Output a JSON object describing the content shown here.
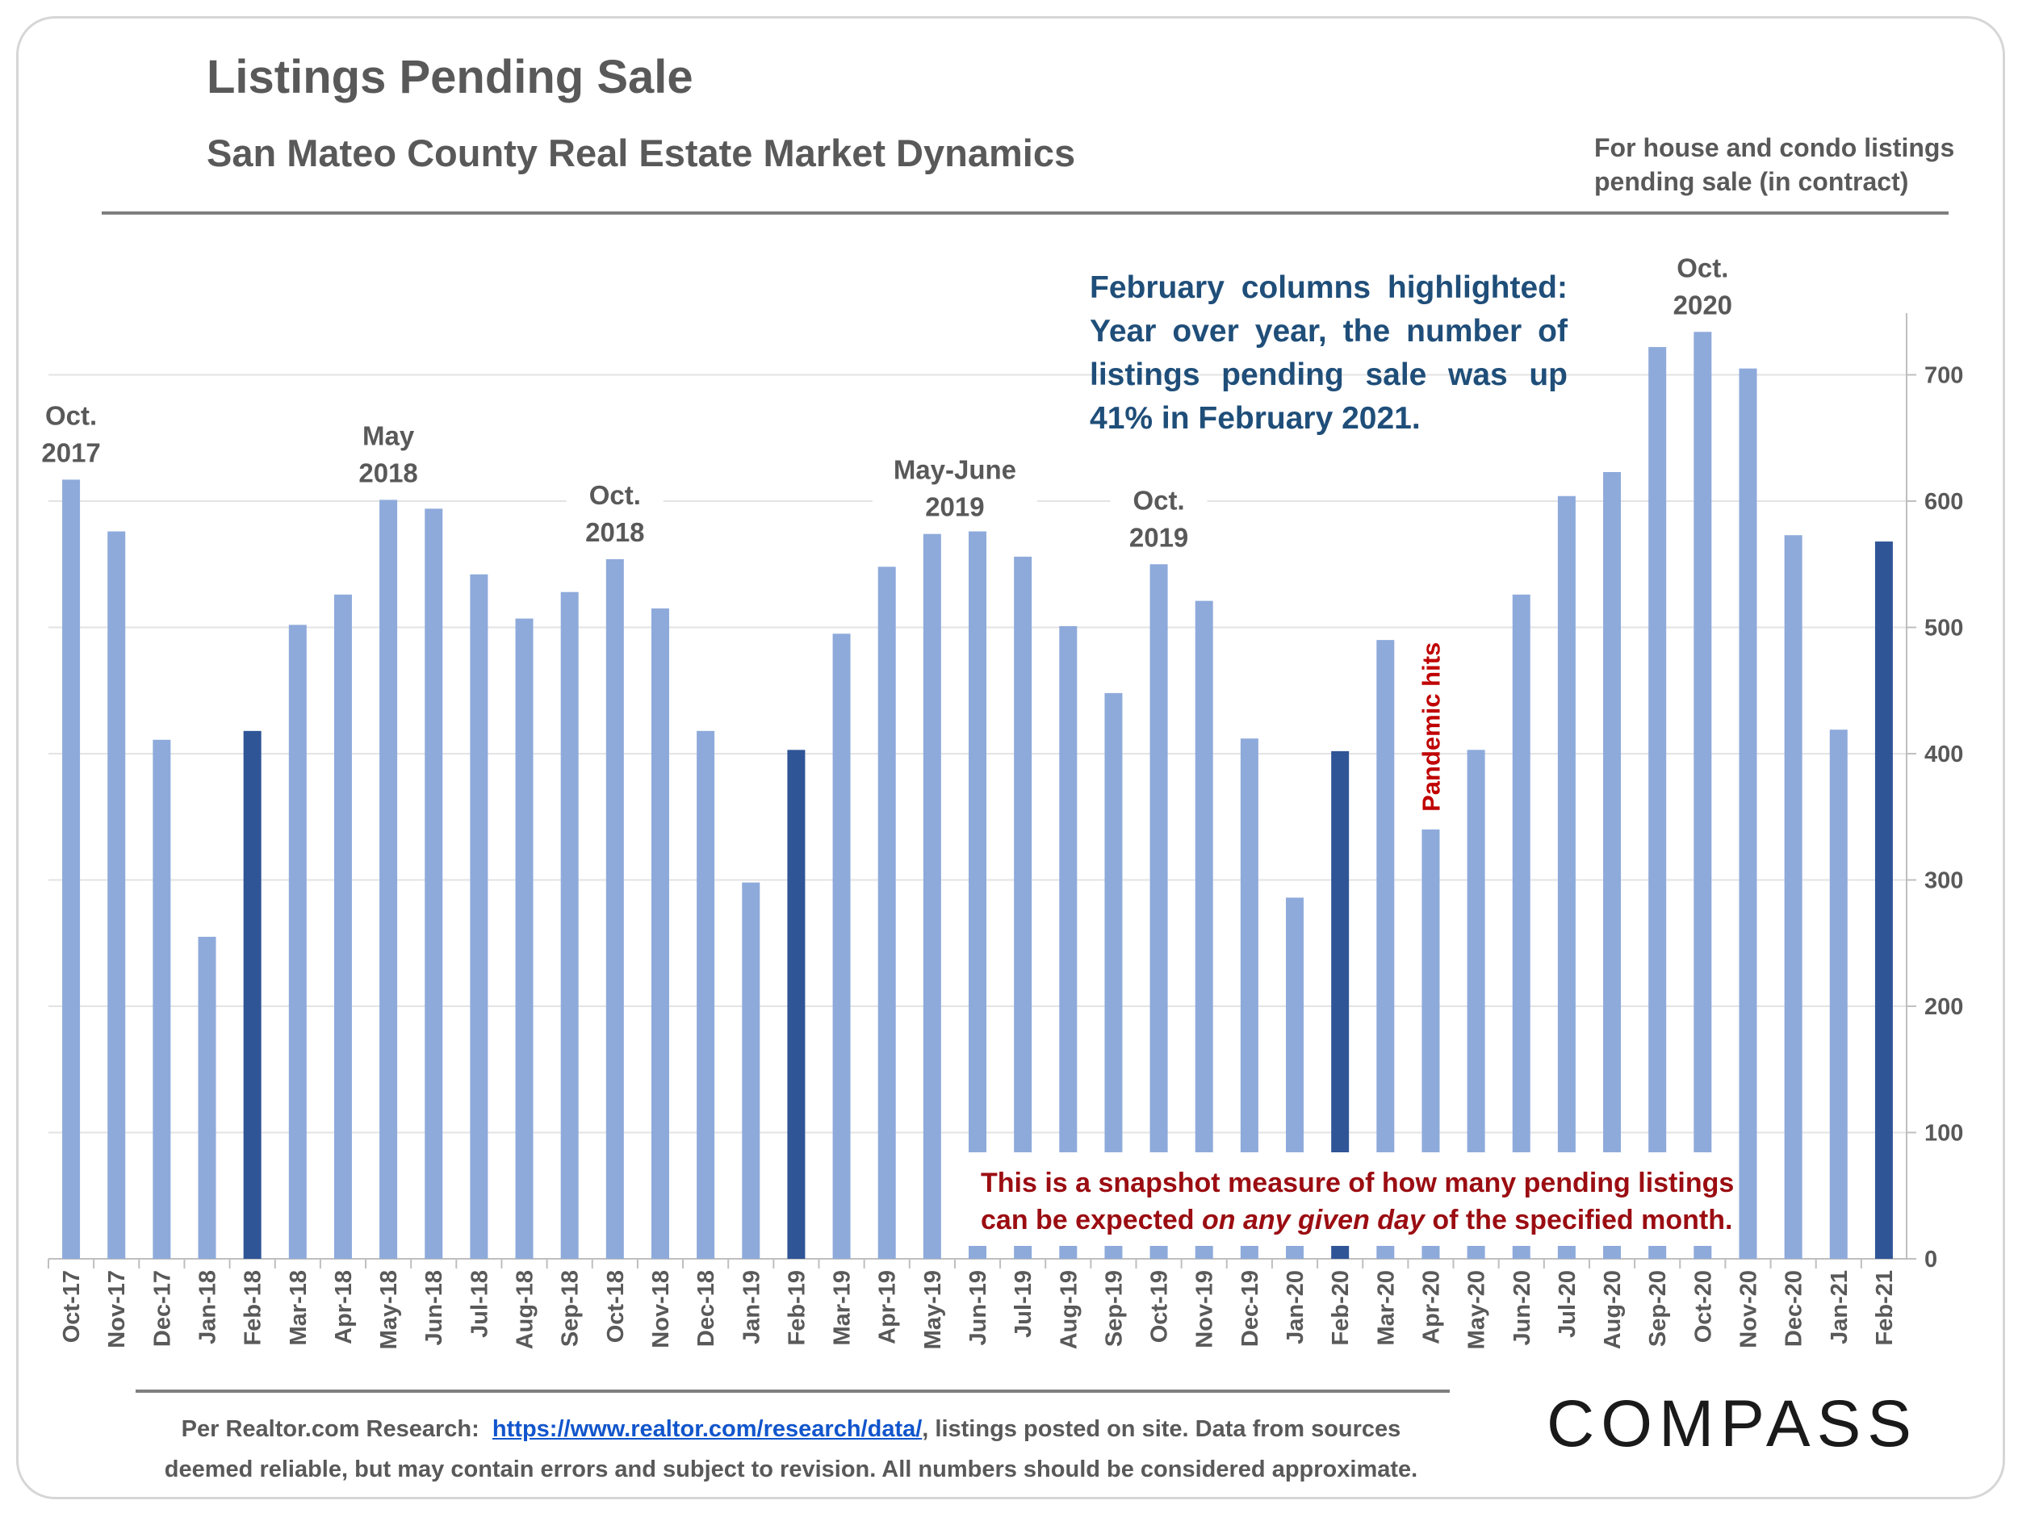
{
  "title": "Listings Pending Sale",
  "subtitle": "San Mateo County Real Estate Market Dynamics",
  "note": "For house and condo listings pending sale (in contract)",
  "callout": "February columns highlighted: Year over year, the number of listings pending sale was up 41% in February 2021.",
  "snapshot": {
    "line1": "This is a snapshot measure of how many pending listings",
    "line2_pre": "can be expected ",
    "line2_em": "on any given day",
    "line2_post": " of the specified month."
  },
  "footer": {
    "prefix": "Per Realtor.com Research:",
    "link": "https://www.realtor.com/research/data/",
    "suffix": ", listings posted on site. Data from sources",
    "line2": "deemed reliable, but may contain errors and subject to revision. All numbers should be considered approximate."
  },
  "logo": "COMPASS",
  "colors": {
    "bar": "#8eaadb",
    "highlight": "#2f5597",
    "callout": "#1f4e79",
    "snapshot": "#9b0d12",
    "pandemic": "#c00000"
  },
  "chart_data": {
    "type": "bar",
    "title": "Listings Pending Sale",
    "ylim": [
      0,
      750
    ],
    "yticks": [
      0,
      100,
      200,
      300,
      400,
      500,
      600,
      700
    ],
    "y_axis_side": "right",
    "categories": [
      "Oct-17",
      "Nov-17",
      "Dec-17",
      "Jan-18",
      "Feb-18",
      "Mar-18",
      "Apr-18",
      "May-18",
      "Jun-18",
      "Jul-18",
      "Aug-18",
      "Sep-18",
      "Oct-18",
      "Nov-18",
      "Dec-18",
      "Jan-19",
      "Feb-19",
      "Mar-19",
      "Apr-19",
      "May-19",
      "Jun-19",
      "Jul-19",
      "Aug-19",
      "Sep-19",
      "Oct-19",
      "Nov-19",
      "Dec-19",
      "Jan-20",
      "Feb-20",
      "Mar-20",
      "Apr-20",
      "May-20",
      "Jun-20",
      "Jul-20",
      "Aug-20",
      "Sep-20",
      "Oct-20",
      "Nov-20",
      "Dec-20",
      "Jan-21",
      "Feb-21"
    ],
    "values": [
      617,
      576,
      411,
      255,
      418,
      502,
      526,
      601,
      594,
      542,
      507,
      528,
      554,
      515,
      418,
      298,
      403,
      495,
      548,
      574,
      576,
      556,
      501,
      448,
      550,
      521,
      412,
      286,
      402,
      490,
      340,
      403,
      526,
      604,
      623,
      722,
      734,
      705,
      573,
      419,
      568
    ],
    "highlighted": [
      "Feb-18",
      "Feb-19",
      "Feb-20",
      "Feb-21"
    ],
    "annotations": [
      {
        "lines": [
          "Oct.",
          "2017"
        ],
        "category": "Oct-17"
      },
      {
        "lines": [
          "May",
          "2018"
        ],
        "category": "May-18"
      },
      {
        "lines": [
          "Oct.",
          "2018"
        ],
        "category": "Oct-18"
      },
      {
        "lines": [
          "May-June",
          "2019"
        ],
        "category": "May-19"
      },
      {
        "lines": [
          "Oct.",
          "2019"
        ],
        "category": "Oct-19"
      },
      {
        "lines": [
          "Oct.",
          "2020"
        ],
        "category": "Oct-20"
      }
    ],
    "pandemic_label": {
      "text": "Pandemic hits",
      "category": "Apr-20"
    }
  }
}
